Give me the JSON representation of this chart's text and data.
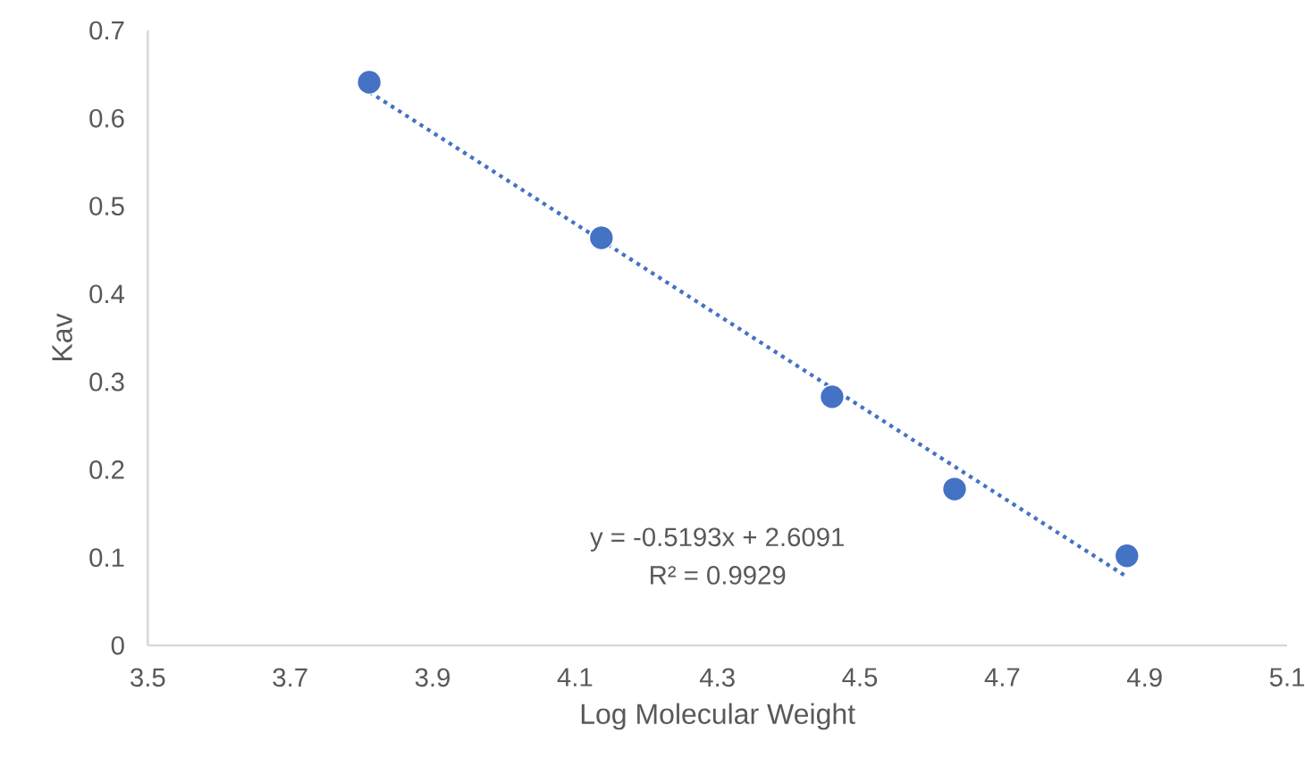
{
  "chart_data": {
    "type": "scatter",
    "xlabel": "Log Molecular Weight",
    "ylabel": "Kav",
    "series": [
      {
        "color": "#4472c4",
        "marker": "circle",
        "x": [
          3.811,
          4.137,
          4.461,
          4.633,
          4.875
        ],
        "values": [
          0.641,
          0.464,
          0.283,
          0.178,
          0.102
        ]
      },
      {
        "type": "line",
        "color": "#4472c4",
        "marker": "none",
        "line_style": "dotted",
        "x": [
          3.811,
          4.875
        ],
        "values": [
          0.63,
          0.078
        ]
      }
    ],
    "annotations": [
      "y = -0.5193x + 2.6091",
      "R² = 0.9929"
    ],
    "xlim": [
      3.5,
      5.1
    ],
    "ylim": [
      0,
      0.7
    ],
    "xticks": [
      3.5,
      3.7,
      3.9,
      4.1,
      4.3,
      4.5,
      4.7,
      4.9,
      5.1
    ],
    "yticks": [
      0,
      0.1,
      0.2,
      0.3,
      0.4,
      0.5,
      0.6,
      0.7
    ],
    "grid": false
  }
}
